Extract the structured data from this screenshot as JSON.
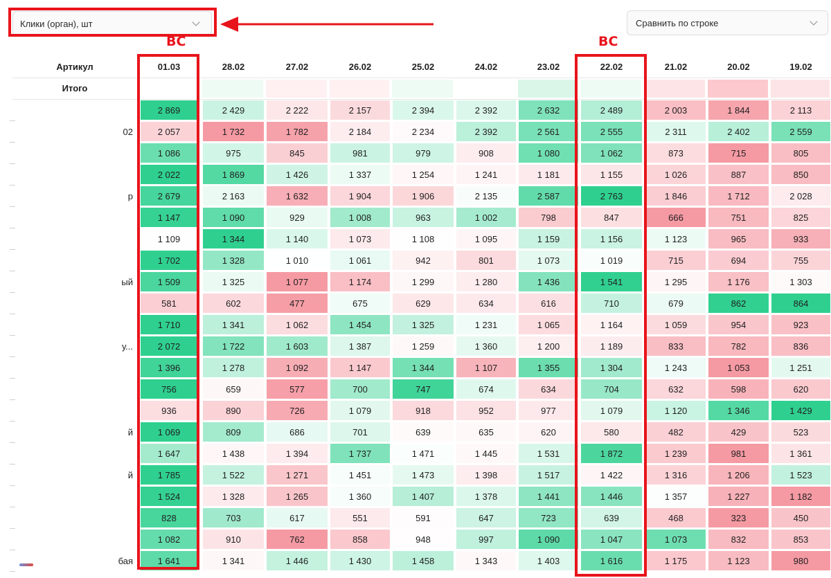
{
  "filters": {
    "metric_label": "Клики (орган), шт",
    "compare_label": "Сравнить по строке"
  },
  "annotations": {
    "col_label_1": "ВС",
    "col_label_2": "ВС"
  },
  "table": {
    "article_header": "Артикул",
    "total_label": "Итого",
    "dates": [
      "01.03",
      "28.02",
      "27.02",
      "26.02",
      "25.02",
      "24.02",
      "23.02",
      "22.02",
      "21.02",
      "20.02",
      "19.02"
    ],
    "row_labels": [
      "",
      "02",
      "",
      "",
      "р",
      "",
      "",
      "",
      "ый",
      "",
      "",
      "у...",
      "",
      "",
      "",
      "й",
      "",
      "й",
      "",
      "",
      "",
      "бая"
    ],
    "rows": [
      [
        "2 869",
        "2 429",
        "2 222",
        "2 157",
        "2 394",
        "2 392",
        "2 632",
        "2 489",
        "2 003",
        "1 844",
        "2 113"
      ],
      [
        "2 057",
        "1 732",
        "1 782",
        "2 184",
        "2 234",
        "2 392",
        "2 561",
        "2 555",
        "2 311",
        "2 402",
        "2 559"
      ],
      [
        "1 086",
        "975",
        "845",
        "981",
        "979",
        "908",
        "1 080",
        "1 062",
        "873",
        "715",
        "805"
      ],
      [
        "2 022",
        "1 869",
        "1 426",
        "1 337",
        "1 254",
        "1 241",
        "1 181",
        "1 155",
        "1 026",
        "887",
        "850"
      ],
      [
        "2 679",
        "2 163",
        "1 632",
        "1 904",
        "1 906",
        "2 135",
        "2 587",
        "2 763",
        "1 846",
        "1 712",
        "2 028"
      ],
      [
        "1 147",
        "1 090",
        "929",
        "1 008",
        "963",
        "1 002",
        "798",
        "847",
        "666",
        "751",
        "825"
      ],
      [
        "1 109",
        "1 344",
        "1 140",
        "1 073",
        "1 108",
        "1 095",
        "1 159",
        "1 156",
        "1 123",
        "965",
        "933"
      ],
      [
        "1 702",
        "1 328",
        "1 010",
        "1 061",
        "942",
        "801",
        "1 073",
        "1 019",
        "715",
        "694",
        "755"
      ],
      [
        "1 509",
        "1 325",
        "1 077",
        "1 174",
        "1 299",
        "1 280",
        "1 436",
        "1 541",
        "1 295",
        "1 176",
        "1 303"
      ],
      [
        "581",
        "602",
        "477",
        "675",
        "629",
        "634",
        "616",
        "710",
        "679",
        "862",
        "864"
      ],
      [
        "1 710",
        "1 341",
        "1 062",
        "1 454",
        "1 325",
        "1 231",
        "1 065",
        "1 164",
        "1 059",
        "954",
        "923"
      ],
      [
        "2 072",
        "1 722",
        "1 603",
        "1 387",
        "1 259",
        "1 360",
        "1 200",
        "1 189",
        "833",
        "782",
        "836"
      ],
      [
        "1 396",
        "1 278",
        "1 092",
        "1 147",
        "1 344",
        "1 107",
        "1 355",
        "1 304",
        "1 243",
        "1 053",
        "1 251"
      ],
      [
        "756",
        "659",
        "577",
        "700",
        "747",
        "674",
        "634",
        "704",
        "632",
        "598",
        "620"
      ],
      [
        "936",
        "890",
        "726",
        "1 079",
        "918",
        "952",
        "977",
        "1 079",
        "1 120",
        "1 346",
        "1 429"
      ],
      [
        "1 069",
        "809",
        "686",
        "701",
        "639",
        "635",
        "620",
        "580",
        "482",
        "429",
        "523"
      ],
      [
        "1 647",
        "1 438",
        "1 394",
        "1 737",
        "1 471",
        "1 445",
        "1 531",
        "1 872",
        "1 239",
        "981",
        "1 361"
      ],
      [
        "1 785",
        "1 522",
        "1 271",
        "1 451",
        "1 473",
        "1 398",
        "1 517",
        "1 422",
        "1 316",
        "1 206",
        "1 523"
      ],
      [
        "1 524",
        "1 328",
        "1 265",
        "1 360",
        "1 407",
        "1 378",
        "1 441",
        "1 446",
        "1 357",
        "1 227",
        "1 182"
      ],
      [
        "828",
        "703",
        "617",
        "551",
        "591",
        "647",
        "723",
        "639",
        "468",
        "323",
        "450"
      ],
      [
        "1 082",
        "910",
        "762",
        "858",
        "948",
        "997",
        "1 090",
        "1 047",
        "1 073",
        "832",
        "853"
      ],
      [
        "1 641",
        "1 341",
        "1 446",
        "1 430",
        "1 458",
        "1 343",
        "1 403",
        "1 616",
        "1 175",
        "1 123",
        "980"
      ]
    ]
  },
  "colors": {
    "high": "#2fd08f",
    "low": "#f59aa3",
    "neutral": "#ffffff",
    "annotation": "#e8141b"
  }
}
